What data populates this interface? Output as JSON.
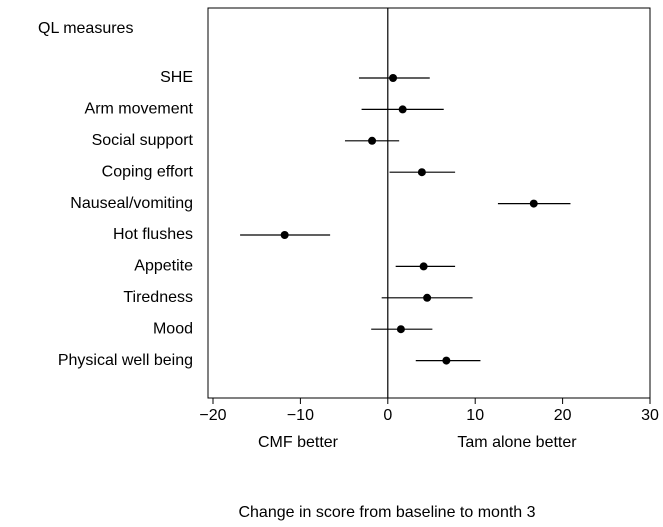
{
  "chart_data": {
    "type": "forest",
    "category_header": "QL measures",
    "categories": [
      "SHE",
      "Arm movement",
      "Social support",
      "Coping effort",
      "Nauseal/vomiting",
      "Hot flushes",
      "Appetite",
      "Tiredness",
      "Mood",
      "Physical well being"
    ],
    "values": [
      0.6,
      1.7,
      -1.8,
      3.9,
      16.7,
      -11.8,
      4.1,
      4.5,
      1.5,
      6.7
    ],
    "lower": [
      -3.3,
      -3.0,
      -4.9,
      0.2,
      12.6,
      -16.9,
      0.9,
      -0.7,
      -1.9,
      3.2
    ],
    "upper": [
      4.8,
      6.4,
      1.3,
      7.7,
      20.9,
      -6.6,
      7.7,
      9.7,
      5.1,
      10.6
    ],
    "color": "#000000",
    "xlim": [
      -20,
      30
    ],
    "xticks": [
      {
        "value": -20,
        "label": "−20"
      },
      {
        "value": -10,
        "label": "−10"
      },
      0,
      10,
      20,
      30
    ],
    "reference_line": 0,
    "left_annotation": "CMF better",
    "right_annotation": "Tam alone better",
    "x_label": "Change in score from baseline to month 3"
  }
}
